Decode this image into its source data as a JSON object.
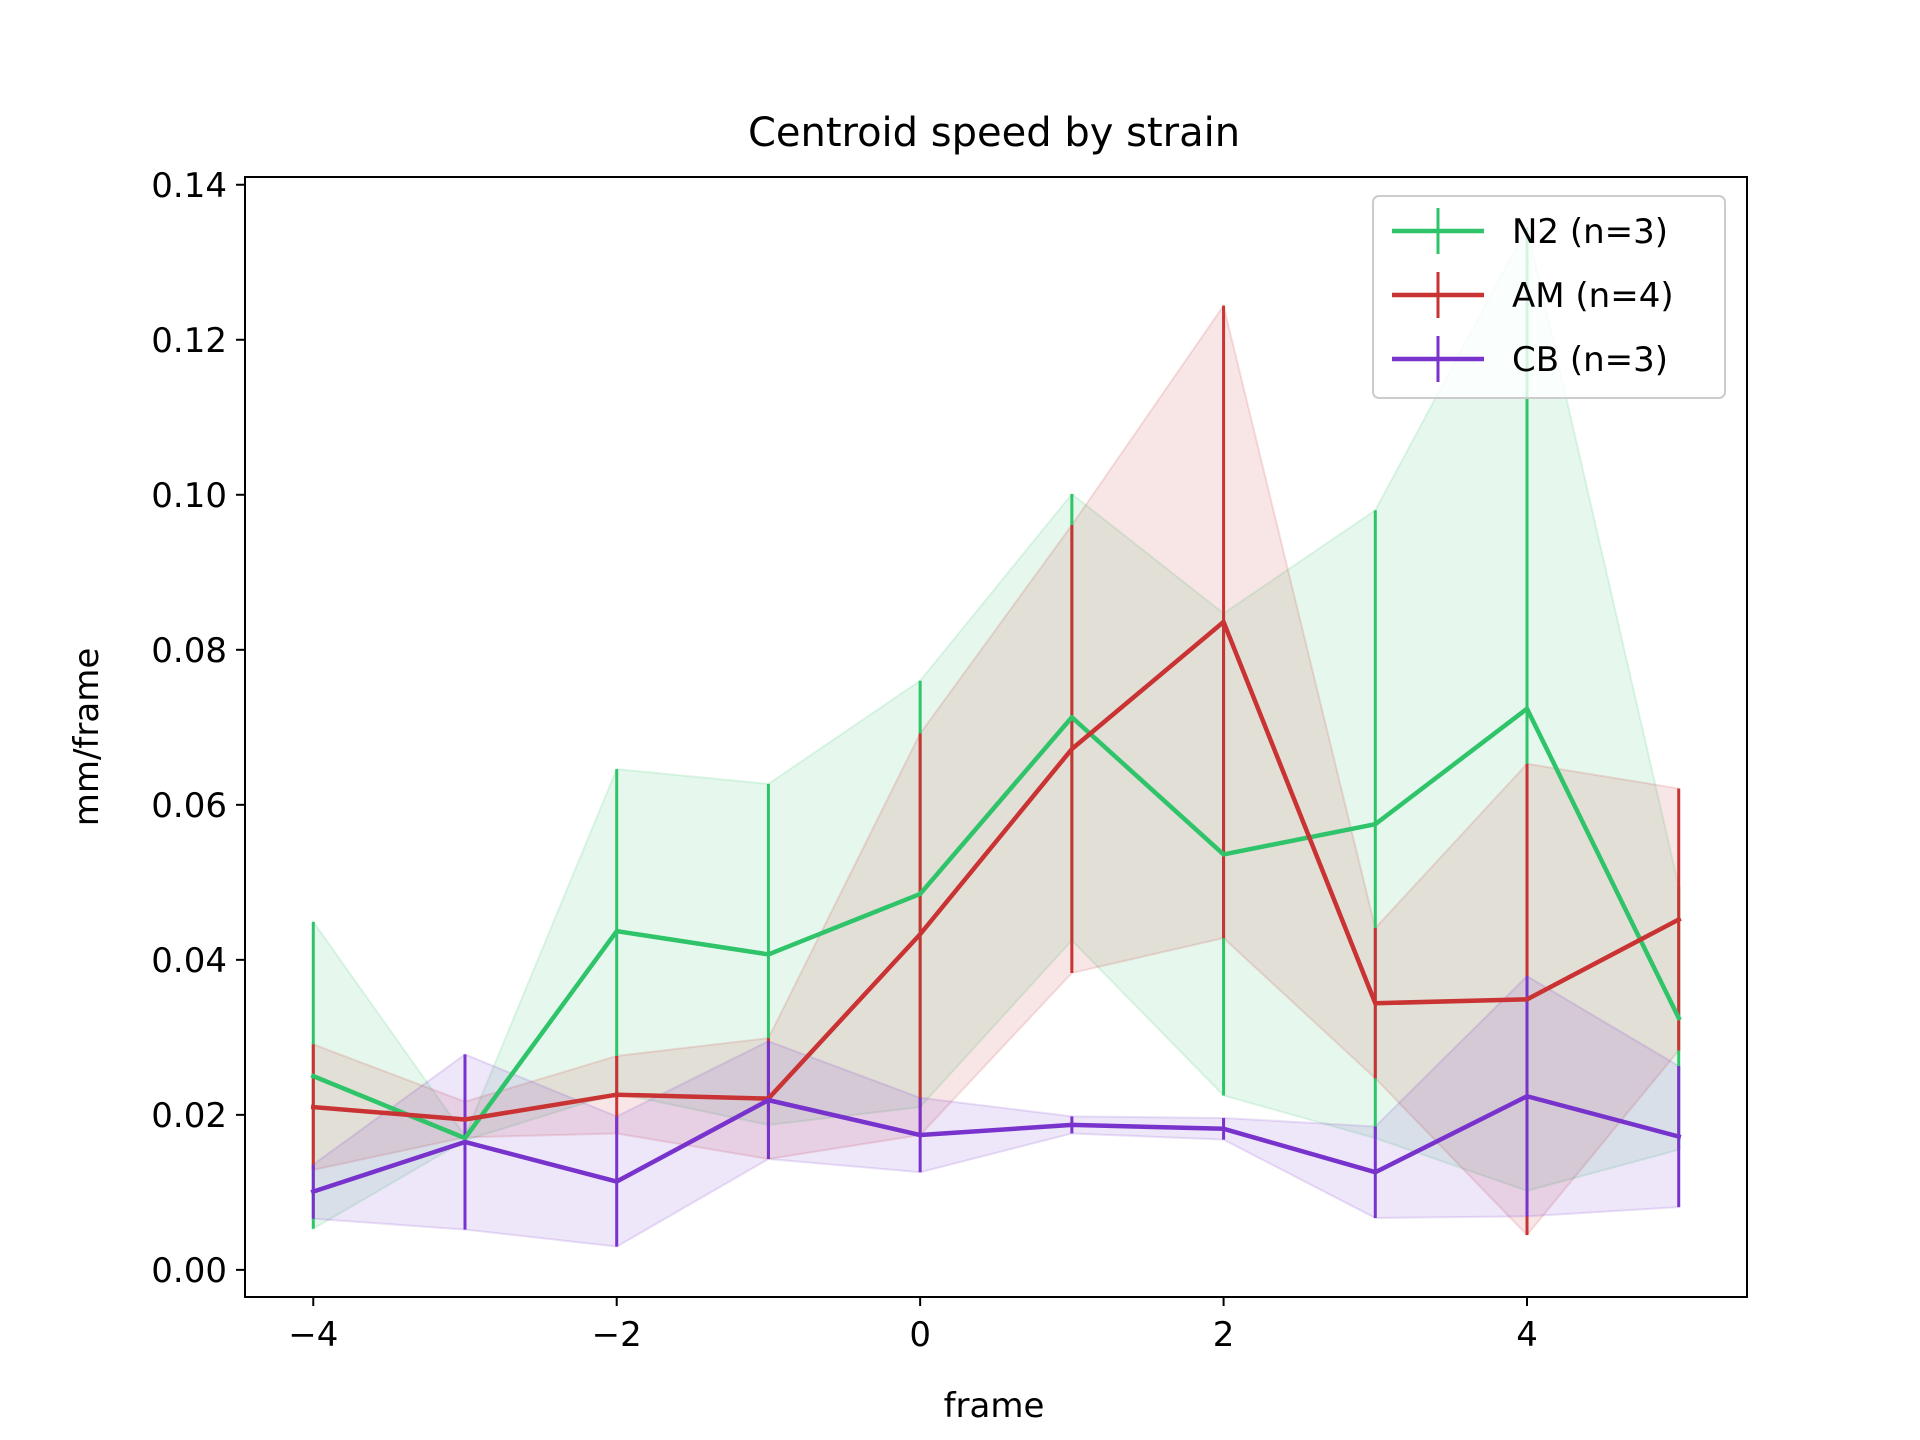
{
  "chart_data": {
    "type": "line",
    "title": "Centroid speed by strain",
    "xlabel": "frame",
    "ylabel": "mm/frame",
    "xlim": [
      -4.45,
      5.45
    ],
    "ylim": [
      -0.0035,
      0.141
    ],
    "x_ticks": [
      -4,
      -2,
      0,
      2,
      4
    ],
    "x_tick_labels": [
      "−4",
      "−2",
      "0",
      "2",
      "4"
    ],
    "y_ticks": [
      0.0,
      0.02,
      0.04,
      0.06,
      0.08,
      0.1,
      0.12,
      0.14
    ],
    "y_tick_labels": [
      "0.00",
      "0.02",
      "0.04",
      "0.06",
      "0.08",
      "0.10",
      "0.12",
      "0.14"
    ],
    "grid": false,
    "legend_position": "top-right",
    "x": [
      -4,
      -3,
      -2,
      -1,
      0,
      1,
      2,
      3,
      4,
      5
    ],
    "series": [
      {
        "name": "N2 (n=3)",
        "color": "#2fc46a",
        "values": [
          0.025,
          0.017,
          0.0437,
          0.0407,
          0.0485,
          0.0713,
          0.0536,
          0.0575,
          0.0724,
          0.0325
        ],
        "lower": [
          0.0053,
          0.0167,
          0.0228,
          0.0187,
          0.021,
          0.0425,
          0.0225,
          0.017,
          0.0102,
          0.0155
        ],
        "upper": [
          0.0449,
          0.0173,
          0.0646,
          0.0627,
          0.076,
          0.1001,
          0.0847,
          0.098,
          0.1345,
          0.0495
        ]
      },
      {
        "name": "AM (n=4)",
        "color": "#c93333",
        "values": [
          0.021,
          0.0194,
          0.0226,
          0.0221,
          0.0433,
          0.0672,
          0.0836,
          0.0344,
          0.0349,
          0.0452
        ],
        "lower": [
          0.0129,
          0.0171,
          0.0176,
          0.0143,
          0.0174,
          0.0383,
          0.0428,
          0.0247,
          0.0045,
          0.0283
        ],
        "upper": [
          0.0291,
          0.0217,
          0.0276,
          0.0299,
          0.0692,
          0.0961,
          0.1244,
          0.0441,
          0.0653,
          0.0621
        ]
      },
      {
        "name": "CB (n=3)",
        "color": "#7733cc",
        "values": [
          0.0101,
          0.0165,
          0.0114,
          0.0219,
          0.0174,
          0.0187,
          0.0182,
          0.0126,
          0.0224,
          0.0172
        ],
        "lower": [
          0.0066,
          0.0052,
          0.003,
          0.0143,
          0.0126,
          0.0176,
          0.0168,
          0.0067,
          0.0069,
          0.0081
        ],
        "upper": [
          0.0136,
          0.0278,
          0.0198,
          0.0295,
          0.0222,
          0.0198,
          0.0196,
          0.0185,
          0.0379,
          0.0263
        ]
      }
    ]
  }
}
